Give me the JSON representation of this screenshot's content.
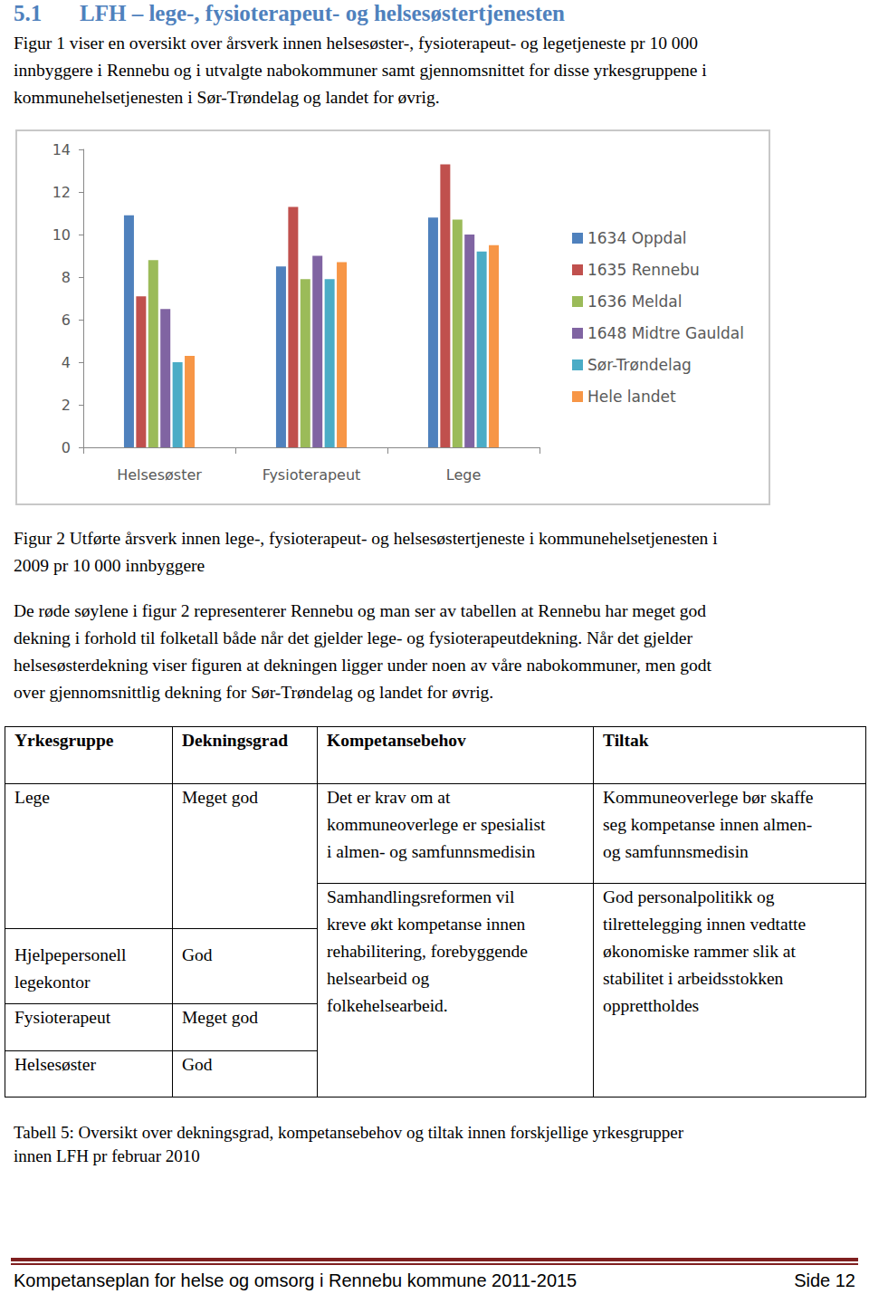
{
  "header": {
    "number": "5.1",
    "title": "LFH – lege-, fysioterapeut- og helsesøstertjenesten"
  },
  "intro": [
    "Figur 1 viser en oversikt over årsverk innen helsesøster-, fysioterapeut- og legetjeneste pr 10 000",
    "innbyggere i Rennebu og i utvalgte nabokommuner samt gjennomsnittet for disse yrkesgruppene i",
    "kommunehelsetjenesten i Sør-Trøndelag og landet for øvrig."
  ],
  "chart_data": {
    "type": "bar",
    "categories": [
      "Helsesøster",
      "Fysioterapeut",
      "Lege"
    ],
    "series": [
      {
        "name": "1634 Oppdal",
        "color": "#4f81bd",
        "values": [
          10.9,
          8.5,
          10.8
        ]
      },
      {
        "name": "1635 Rennebu",
        "color": "#c0504d",
        "values": [
          7.1,
          11.3,
          13.3
        ]
      },
      {
        "name": "1636 Meldal",
        "color": "#9bbb59",
        "values": [
          8.8,
          7.9,
          10.7
        ]
      },
      {
        "name": "1648 Midtre Gauldal",
        "color": "#8064a2",
        "values": [
          6.5,
          9.0,
          10.0
        ]
      },
      {
        "name": "Sør-Trøndelag",
        "color": "#4bacc6",
        "values": [
          4.0,
          7.9,
          9.2
        ]
      },
      {
        "name": "Hele landet",
        "color": "#f79646",
        "values": [
          4.3,
          8.7,
          9.5
        ]
      }
    ],
    "ylim": [
      0,
      14
    ],
    "yticks": [
      0,
      2,
      4,
      6,
      8,
      10,
      12,
      14
    ],
    "grid": false,
    "legend": "right"
  },
  "figure_caption": [
    "Figur 2 Utførte årsverk innen lege-, fysioterapeut- og helsesøstertjeneste i kommunehelsetjenesten i",
    "2009 pr 10 000 innbyggere"
  ],
  "paragraph": [
    "De røde søylene i figur 2 representerer Rennebu og man ser av tabellen at Rennebu har meget god",
    "dekning i forhold til folketall både når det gjelder lege- og fysioterapeutdekning. Når det gjelder",
    "helsesøsterdekning viser figuren at dekningen ligger under noen av våre nabokommuner, men godt",
    "over gjennomsnittlig dekning for Sør-Trøndelag og landet for øvrig."
  ],
  "table": {
    "header": [
      "Yrkesgruppe",
      "Dekningsgrad",
      "Kompetansebehov",
      "Tiltak"
    ],
    "groups": [
      {
        "rows": [
          [
            [
              "Lege"
            ],
            [
              "Meget god"
            ]
          ]
        ],
        "kompetansebehov": [
          "Det er krav om at",
          "kommuneoverlege er spesialist",
          "i almen- og samfunnsmedisin"
        ],
        "tiltak": [
          "Kommuneoverlege bør skaffe",
          "seg kompetanse innen almen-",
          "og samfunnsmedisin"
        ]
      },
      {
        "rows": [
          [
            [
              "Hjelpepersonell",
              "legekontor"
            ],
            [
              "God"
            ]
          ],
          [
            [
              "Fysioterapeut"
            ],
            [
              "Meget god"
            ]
          ],
          [
            [
              "Helsesøster"
            ],
            [
              "God"
            ]
          ]
        ],
        "kompetansebehov": [
          "Samhandlingsreformen vil",
          "kreve økt kompetanse innen",
          "rehabilitering, forebyggende",
          "helsearbeid og",
          "folkehelsearbeid."
        ],
        "tiltak": [
          "God personalpolitikk og",
          "tilrettelegging innen vedtatte",
          "økonomiske rammer slik at",
          "stabilitet i arbeidsstokken",
          "opprettholdes"
        ]
      }
    ]
  },
  "table_caption": [
    " Tabell 5: Oversikt over dekningsgrad, kompetansebehov og tiltak innen forskjellige yrkesgrupper",
    "innen LFH pr februar 2010"
  ],
  "footer": {
    "left": "Kompetanseplan for helse og omsorg i Rennebu kommune 2011-2015",
    "right": "Side 12"
  }
}
